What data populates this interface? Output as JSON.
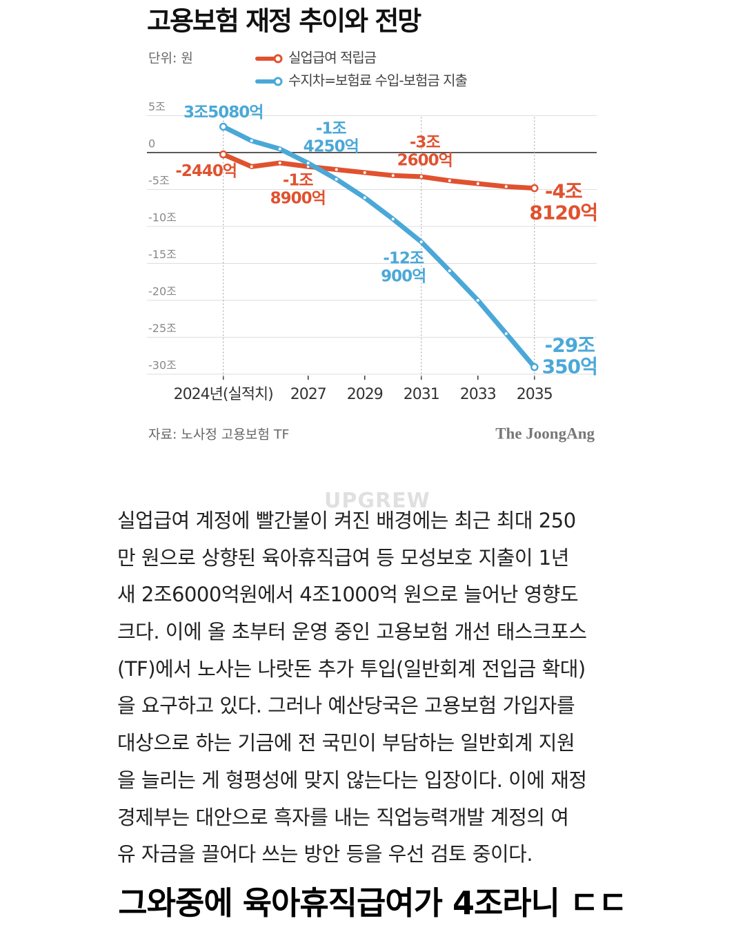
{
  "chart_data": {
    "type": "line",
    "title": "고용보험 재정 추이와 전망",
    "subtitle": "단위: 원",
    "x": [
      2024,
      2025,
      2026,
      2027,
      2028,
      2029,
      2030,
      2031,
      2032,
      2033,
      2034,
      2035
    ],
    "xlim": [
      2021.3,
      2037.2
    ],
    "xticks": [
      {
        "value": 2024,
        "label": "2024년(실적치)"
      },
      2027,
      2029,
      2031,
      2033,
      2035
    ],
    "ylim": [
      -31.5,
      6.5
    ],
    "yticks": [
      {
        "value": 5,
        "label": "5조"
      },
      0,
      {
        "value": -5,
        "label": "-5조"
      },
      {
        "value": -10,
        "label": "-10조"
      },
      {
        "value": -15,
        "label": "-15조"
      },
      {
        "value": -20,
        "label": "-20조"
      },
      {
        "value": -25,
        "label": "-25조"
      },
      {
        "value": -30,
        "label": "-30조"
      }
    ],
    "grid": true,
    "series": [
      {
        "name": "실업급여 적립금",
        "color": "#e0522f",
        "values": [
          -0.244,
          -1.9,
          -1.4,
          -1.89,
          -2.3,
          -2.7,
          -3.1,
          -3.26,
          -3.8,
          -4.2,
          -4.6,
          -4.812
        ],
        "value_labels": [
          "-2440억",
          null,
          null,
          "-1조\n8900억",
          null,
          null,
          null,
          "-3조\n2600억",
          null,
          null,
          null,
          "-4조\n8120억"
        ]
      },
      {
        "name": "수지차=보험료 수입-보험금 지출",
        "color": "#4aa8d8",
        "values": [
          3.508,
          1.6,
          0.5,
          -1.425,
          -3.6,
          -6.1,
          -9.0,
          -12.09,
          -16.0,
          -20.0,
          -24.5,
          -29.035
        ],
        "value_labels": [
          "3조5080억",
          null,
          null,
          "-1조\n4250억",
          null,
          null,
          null,
          "-12조\n900억",
          null,
          null,
          null,
          "-29조\n350억"
        ]
      }
    ],
    "source": "자료: 노사정 고용보험 TF",
    "brand": "The JoongAng"
  },
  "watermark": "UPGREW",
  "article": {
    "lines": [
      "실업급여 계정에 빨간불이 켜진 배경에는 최근 최대 250",
      "만 원으로 상향된 육아휴직급여 등 모성보호 지출이 1년",
      "새 2조6000억원에서 4조1000억 원으로 늘어난 영향도",
      "크다. 이에 올 초부터 운영 중인 고용보험 개선 태스크포스",
      "(TF)에서 노사는 나랏돈 추가 투입(일반회계 전입금 확대)",
      "을 요구하고 있다. 그러나 예산당국은 고용보험 가입자를",
      "대상으로 하는 기금에 전 국민이 부담하는 일반회계 지원",
      "을 늘리는 게 형평성에 맞지 않는다는 입장이다. 이에 재정",
      "경제부는 대안으로 흑자를 내는 직업능력개발 계정의 여",
      "유 자금을 끌어다 쓰는 방안 등을 우선 검토 중이다."
    ]
  },
  "caption": "그와중에 육아휴직급여가 4조라니 ㄷㄷ"
}
